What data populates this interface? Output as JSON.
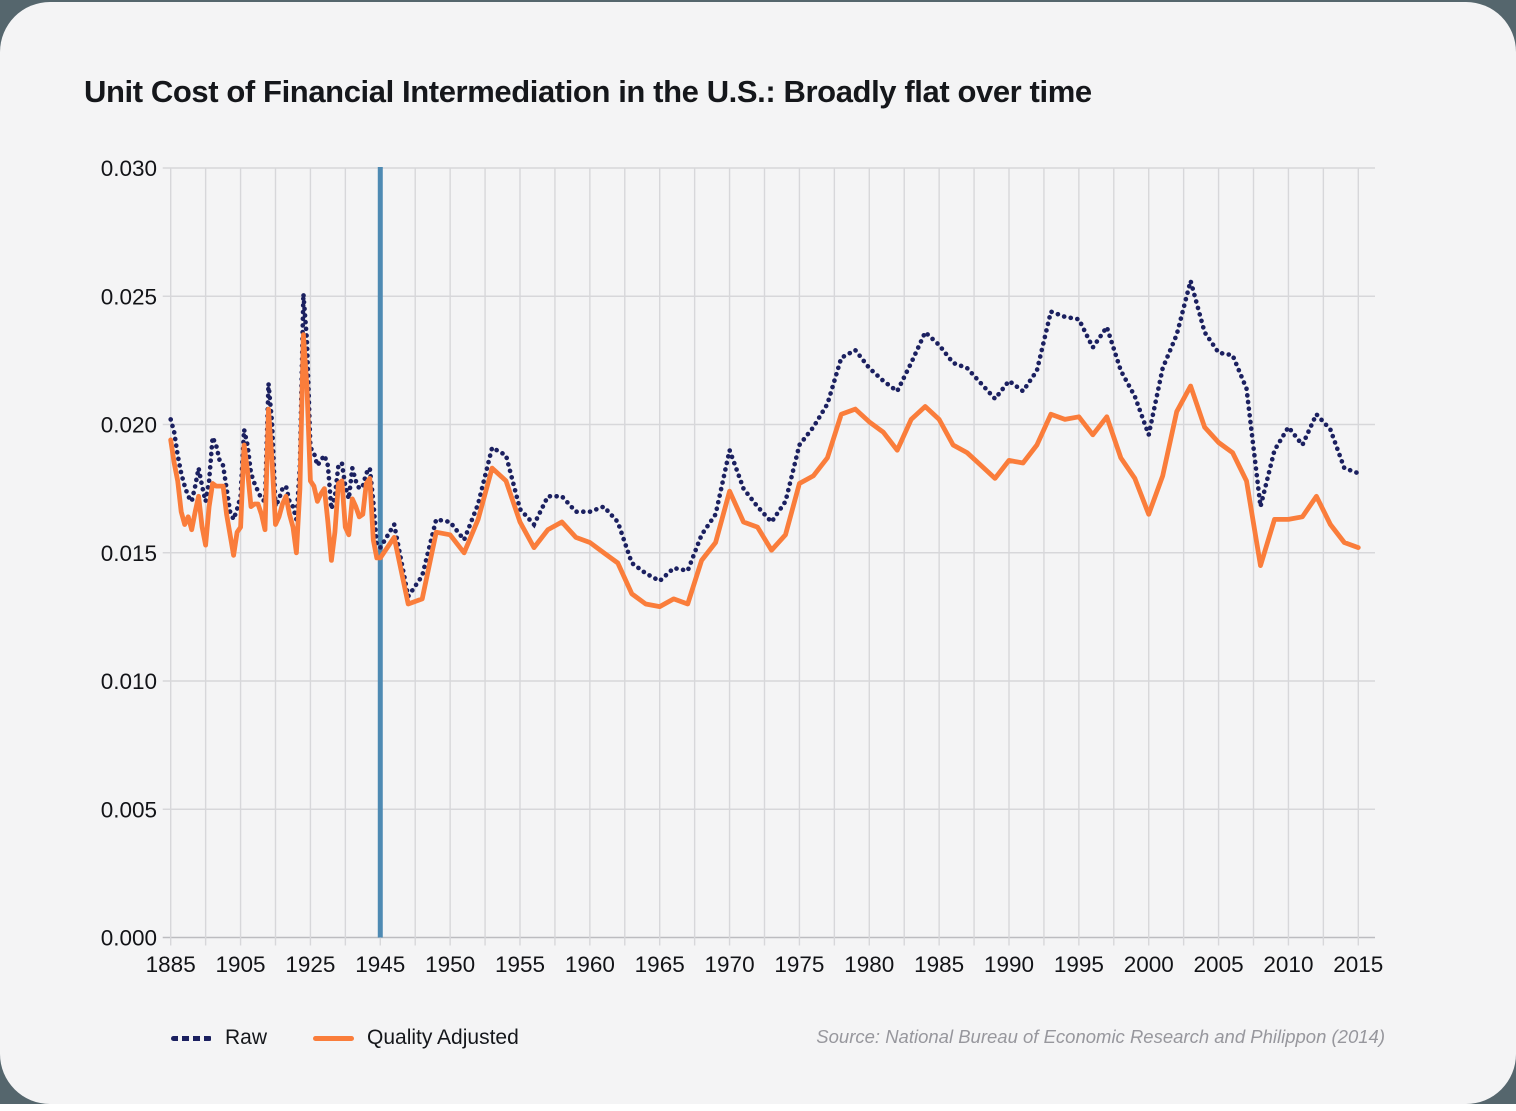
{
  "title": "Unit Cost of Financial Intermediation in the U.S.: Broadly flat over time",
  "legend": {
    "raw_label": "Raw",
    "quality_adjusted_label": "Quality Adjusted"
  },
  "source": "Source: National Bureau of Economic Research and Philippon (2014)",
  "colors": {
    "raw": "#1b2060",
    "quality_adjusted": "#fa7d3b",
    "event_line": "#4e8ab3",
    "grid": "#d7d7da",
    "axis": "#bcbcc0",
    "tick_text": "#121317",
    "title_text": "#15171b",
    "source_text": "#97979d",
    "card_bg": "#f4f4f5",
    "page_bg": "#55666d"
  },
  "chart_data": {
    "type": "line",
    "title": "Unit Cost of Financial Intermediation in the U.S.: Broadly flat over time",
    "xlabel": "",
    "ylabel": "",
    "ylim": [
      0,
      0.03
    ],
    "y_ticks": [
      0,
      0.005,
      0.01,
      0.015,
      0.02,
      0.025,
      0.03
    ],
    "y_tick_labels": [
      "0.000",
      "0.005",
      "0.010",
      "0.015",
      "0.020",
      "0.025",
      "0.030"
    ],
    "x_tick_labels": [
      "1885",
      "1905",
      "1925",
      "1945",
      "1950",
      "1955",
      "1960",
      "1965",
      "1970",
      "1975",
      "1980",
      "1985",
      "1990",
      "1995",
      "2000",
      "2005",
      "2010",
      "2015"
    ],
    "axis_note": "x axis is piecewise linear: 10 years per gridline before 1945, 2.5 years per gridline after 1945; vertical marker line at 1945",
    "event_line_year": 1945,
    "grid": true,
    "legend_position": "bottom-left",
    "x": [
      1885,
      1886,
      1887,
      1888,
      1889,
      1890,
      1891,
      1892,
      1893,
      1894,
      1895,
      1896,
      1897,
      1898,
      1899,
      1900,
      1901,
      1902,
      1903,
      1904,
      1905,
      1906,
      1907,
      1908,
      1909,
      1910,
      1911,
      1912,
      1913,
      1914,
      1915,
      1916,
      1917,
      1918,
      1919,
      1920,
      1921,
      1922,
      1923,
      1924,
      1925,
      1926,
      1927,
      1928,
      1929,
      1930,
      1931,
      1932,
      1933,
      1934,
      1935,
      1936,
      1937,
      1938,
      1939,
      1940,
      1941,
      1942,
      1943,
      1944,
      1945,
      1946,
      1947,
      1948,
      1949,
      1950,
      1951,
      1952,
      1953,
      1954,
      1955,
      1956,
      1957,
      1958,
      1959,
      1960,
      1961,
      1962,
      1963,
      1964,
      1965,
      1966,
      1967,
      1968,
      1969,
      1970,
      1971,
      1972,
      1973,
      1974,
      1975,
      1976,
      1977,
      1978,
      1979,
      1980,
      1981,
      1982,
      1983,
      1984,
      1985,
      1986,
      1987,
      1988,
      1989,
      1990,
      1991,
      1992,
      1993,
      1994,
      1995,
      1996,
      1997,
      1998,
      1999,
      2000,
      2001,
      2002,
      2003,
      2004,
      2005,
      2006,
      2007,
      2008,
      2009,
      2010,
      2011,
      2012,
      2013,
      2014,
      2015
    ],
    "series": [
      {
        "name": "Raw",
        "style": "dotted",
        "color": "#1b2060",
        "values": [
          0.0202,
          0.0197,
          0.0188,
          0.0181,
          0.0176,
          0.0172,
          0.017,
          0.0176,
          0.0183,
          0.0176,
          0.017,
          0.0178,
          0.0195,
          0.0192,
          0.0186,
          0.0184,
          0.0175,
          0.0166,
          0.0163,
          0.0167,
          0.0172,
          0.0198,
          0.0192,
          0.0181,
          0.0177,
          0.0174,
          0.0171,
          0.017,
          0.0216,
          0.0201,
          0.0168,
          0.0171,
          0.0175,
          0.0176,
          0.017,
          0.0168,
          0.0163,
          0.0184,
          0.0251,
          0.0233,
          0.0191,
          0.0189,
          0.0184,
          0.0186,
          0.0188,
          0.0184,
          0.0167,
          0.0172,
          0.0184,
          0.0185,
          0.0176,
          0.0171,
          0.0183,
          0.0178,
          0.0175,
          0.0176,
          0.0181,
          0.0183,
          0.017,
          0.0153,
          0.0152,
          0.0161,
          0.0133,
          0.0141,
          0.0163,
          0.0162,
          0.0155,
          0.0169,
          0.0191,
          0.0188,
          0.0167,
          0.0161,
          0.0172,
          0.0172,
          0.0166,
          0.0166,
          0.0168,
          0.0162,
          0.0146,
          0.0142,
          0.0139,
          0.0144,
          0.0143,
          0.0157,
          0.0165,
          0.019,
          0.0175,
          0.0168,
          0.0162,
          0.017,
          0.0192,
          0.0199,
          0.0208,
          0.0226,
          0.0229,
          0.0222,
          0.0217,
          0.0213,
          0.0224,
          0.0236,
          0.0231,
          0.0224,
          0.0222,
          0.0216,
          0.021,
          0.0217,
          0.0213,
          0.0221,
          0.0244,
          0.0242,
          0.0241,
          0.023,
          0.0238,
          0.0221,
          0.0211,
          0.0196,
          0.0222,
          0.0235,
          0.0256,
          0.0236,
          0.0228,
          0.0227,
          0.0214,
          0.0168,
          0.019,
          0.0199,
          0.0192,
          0.0204,
          0.0198,
          0.0183,
          0.0181
        ]
      },
      {
        "name": "Quality Adjusted",
        "style": "solid",
        "color": "#fa7d3b",
        "values": [
          0.0194,
          0.0185,
          0.0178,
          0.0166,
          0.0161,
          0.0164,
          0.0159,
          0.0166,
          0.0172,
          0.016,
          0.0153,
          0.0168,
          0.0177,
          0.0176,
          0.0176,
          0.0176,
          0.0165,
          0.0157,
          0.0149,
          0.0158,
          0.016,
          0.0192,
          0.0182,
          0.0168,
          0.0169,
          0.0169,
          0.0165,
          0.0159,
          0.0206,
          0.0186,
          0.0161,
          0.0164,
          0.0169,
          0.0172,
          0.0165,
          0.016,
          0.015,
          0.0175,
          0.0235,
          0.0215,
          0.0178,
          0.0176,
          0.017,
          0.0173,
          0.0175,
          0.0162,
          0.0147,
          0.0158,
          0.0177,
          0.0178,
          0.016,
          0.0157,
          0.0171,
          0.0168,
          0.0164,
          0.0165,
          0.0177,
          0.0179,
          0.0155,
          0.0148,
          0.0148,
          0.0156,
          0.013,
          0.0132,
          0.0158,
          0.0157,
          0.015,
          0.0163,
          0.0183,
          0.0178,
          0.0162,
          0.0152,
          0.0159,
          0.0162,
          0.0156,
          0.0154,
          0.015,
          0.0146,
          0.0134,
          0.013,
          0.0129,
          0.0132,
          0.013,
          0.0147,
          0.0154,
          0.0174,
          0.0162,
          0.016,
          0.0151,
          0.0157,
          0.0177,
          0.018,
          0.0187,
          0.0204,
          0.0206,
          0.0201,
          0.0197,
          0.019,
          0.0202,
          0.0207,
          0.0202,
          0.0192,
          0.0189,
          0.0184,
          0.0179,
          0.0186,
          0.0185,
          0.0192,
          0.0204,
          0.0202,
          0.0203,
          0.0196,
          0.0203,
          0.0187,
          0.0179,
          0.0165,
          0.018,
          0.0205,
          0.0215,
          0.0199,
          0.0193,
          0.0189,
          0.0178,
          0.0145,
          0.0163,
          0.0163,
          0.0164,
          0.0172,
          0.0161,
          0.0154,
          0.0152
        ]
      }
    ]
  }
}
